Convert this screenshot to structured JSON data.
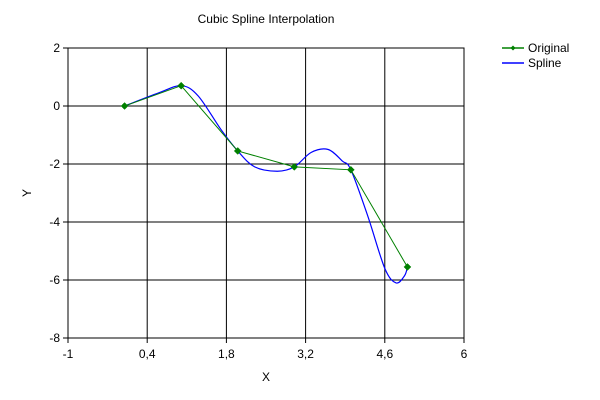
{
  "chart_data": {
    "type": "line",
    "title": "Cubic Spline Interpolation",
    "xlabel": "X",
    "ylabel": "Y",
    "xlim": [
      -1,
      6
    ],
    "ylim": [
      -8,
      2
    ],
    "x_ticks": [
      -1,
      0.4,
      1.8,
      3.2,
      4.6,
      6
    ],
    "x_tick_labels": [
      "-1",
      "0,4",
      "1,8",
      "3,2",
      "4,6",
      "6"
    ],
    "y_ticks": [
      -8,
      -6,
      -4,
      -2,
      0,
      2
    ],
    "y_tick_labels": [
      "-8",
      "-6",
      "-4",
      "-2",
      "0",
      "2"
    ],
    "grid": true,
    "legend_position": "top-right",
    "series": [
      {
        "name": "Original",
        "color": "#008000",
        "markers": true,
        "x": [
          0,
          1,
          2,
          3,
          4,
          5
        ],
        "y": [
          0,
          0.7,
          -1.55,
          -2.1,
          -2.2,
          -5.55
        ]
      },
      {
        "name": "Spline",
        "color": "#0000ff",
        "markers": false,
        "x": [
          0,
          0.6,
          1.0,
          1.3,
          1.7,
          2.0,
          2.3,
          2.7,
          3.0,
          3.3,
          3.6,
          3.85,
          4.0,
          4.3,
          4.6,
          4.8,
          4.95,
          5.0
        ],
        "y": [
          0,
          0.45,
          0.7,
          0.35,
          -0.8,
          -1.55,
          -2.1,
          -2.25,
          -2.1,
          -1.6,
          -1.5,
          -1.9,
          -2.2,
          -3.8,
          -5.6,
          -6.1,
          -5.85,
          -5.55
        ]
      }
    ]
  }
}
